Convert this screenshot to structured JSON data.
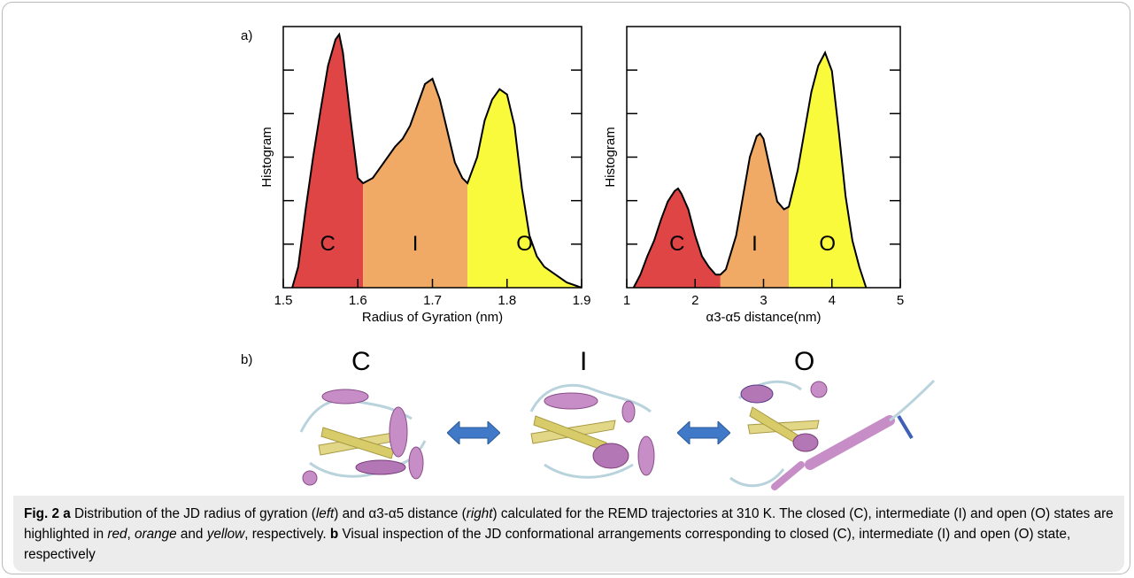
{
  "panels": {
    "a": "a)",
    "b": "b)"
  },
  "colors": {
    "closed": "#e04545",
    "intermediate": "#f0aa66",
    "open": "#fafa3c",
    "arrow": "#3f79c8"
  },
  "chart_data": [
    {
      "type": "area",
      "title": "",
      "xlabel": "Radius of Gyration (nm)",
      "ylabel": "Histogram",
      "xlim": [
        1.5,
        1.9
      ],
      "xticks": [
        "1.5",
        "1.6",
        "1.7",
        "1.8",
        "1.9"
      ],
      "yticks_labeled": false,
      "regions": [
        {
          "label": "C",
          "from": 1.5,
          "to": 1.607,
          "color": "#e04545"
        },
        {
          "label": "I",
          "from": 1.607,
          "to": 1.747,
          "color": "#f0aa66"
        },
        {
          "label": "O",
          "from": 1.747,
          "to": 1.9,
          "color": "#fafa3c"
        }
      ],
      "x": [
        1.512,
        1.52,
        1.53,
        1.54,
        1.55,
        1.56,
        1.57,
        1.575,
        1.58,
        1.59,
        1.6,
        1.607,
        1.62,
        1.63,
        1.64,
        1.65,
        1.66,
        1.67,
        1.68,
        1.69,
        1.7,
        1.71,
        1.72,
        1.73,
        1.74,
        1.747,
        1.76,
        1.77,
        1.78,
        1.79,
        1.8,
        1.81,
        1.82,
        1.83,
        1.84,
        1.85,
        1.86,
        1.87,
        1.88,
        1.9
      ],
      "y": [
        0,
        0.08,
        0.3,
        0.5,
        0.68,
        0.85,
        0.95,
        0.97,
        0.9,
        0.65,
        0.42,
        0.4,
        0.42,
        0.46,
        0.5,
        0.54,
        0.57,
        0.62,
        0.7,
        0.78,
        0.8,
        0.72,
        0.6,
        0.48,
        0.42,
        0.4,
        0.5,
        0.64,
        0.72,
        0.76,
        0.74,
        0.62,
        0.38,
        0.2,
        0.12,
        0.08,
        0.06,
        0.04,
        0.02,
        0
      ]
    },
    {
      "type": "area",
      "title": "",
      "xlabel": "α3-α5 distance(nm)",
      "ylabel": "Histogram",
      "xlim": [
        1,
        5
      ],
      "xticks": [
        "1",
        "2",
        "3",
        "4",
        "5"
      ],
      "yticks_labeled": false,
      "regions": [
        {
          "label": "C",
          "from": 1.0,
          "to": 2.37,
          "color": "#e04545"
        },
        {
          "label": "I",
          "from": 2.37,
          "to": 3.37,
          "color": "#f0aa66"
        },
        {
          "label": "O",
          "from": 3.37,
          "to": 5.0,
          "color": "#fafa3c"
        }
      ],
      "x": [
        1.1,
        1.2,
        1.3,
        1.4,
        1.5,
        1.6,
        1.7,
        1.75,
        1.8,
        1.9,
        2.0,
        2.1,
        2.2,
        2.3,
        2.37,
        2.45,
        2.6,
        2.7,
        2.8,
        2.9,
        2.95,
        3.0,
        3.1,
        3.2,
        3.3,
        3.37,
        3.5,
        3.6,
        3.7,
        3.8,
        3.9,
        4.0,
        4.1,
        4.2,
        4.3,
        4.4,
        4.5
      ],
      "y": [
        0,
        0.05,
        0.12,
        0.18,
        0.26,
        0.33,
        0.37,
        0.38,
        0.36,
        0.3,
        0.2,
        0.12,
        0.08,
        0.05,
        0.05,
        0.07,
        0.2,
        0.35,
        0.5,
        0.58,
        0.59,
        0.57,
        0.45,
        0.33,
        0.3,
        0.31,
        0.45,
        0.6,
        0.75,
        0.85,
        0.9,
        0.83,
        0.6,
        0.35,
        0.18,
        0.08,
        0
      ]
    }
  ],
  "structures": [
    {
      "label": "C"
    },
    {
      "label": "I"
    },
    {
      "label": "O"
    }
  ],
  "caption": {
    "fig": "Fig. 2",
    "a": "a",
    "t1": " Distribution of the JD radius of gyration (",
    "left": "left",
    "t2": ") and α3-α5 distance (",
    "right": "right",
    "t3": ") calculated for the REMD trajectories at 310 K. The closed (C), intermediate (I) and open (O) states are highlighted in ",
    "red": "red",
    "t4": ", ",
    "orange": "orange",
    "t5": " and ",
    "yellow": "yellow",
    "t6": ", respectively. ",
    "b": "b",
    "t7": " Visual inspection of the JD conformational arrangements corresponding to closed (C), intermediate (I) and open (O) state, respectively"
  }
}
